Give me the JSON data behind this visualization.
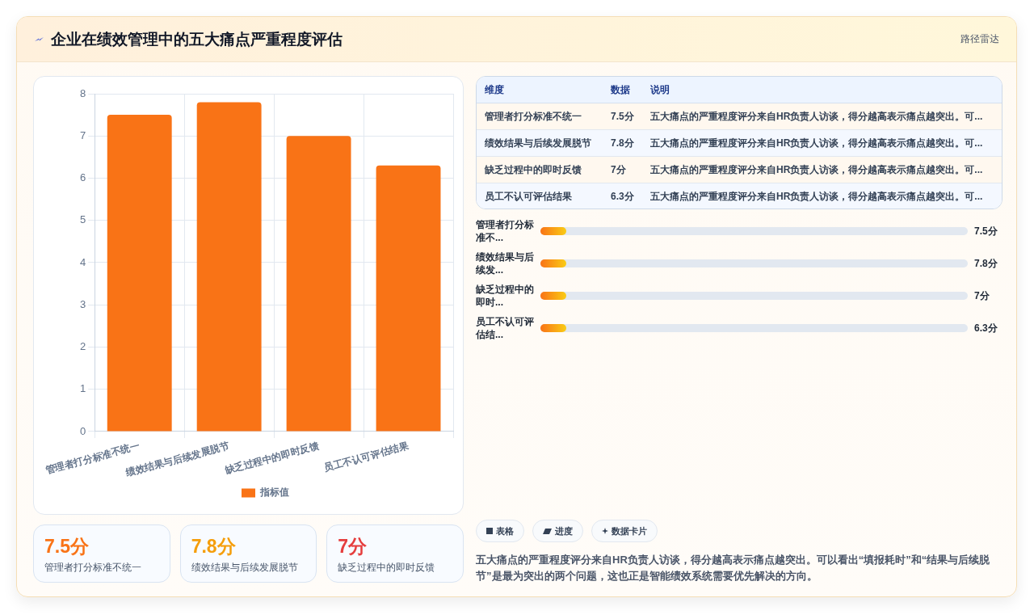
{
  "chart_data": [
    {
      "type": "bar",
      "title": "企业在绩效管理中的五大痛点严重程度评估",
      "categories": [
        "管理者打分标准不统一",
        "绩效结果与后续发展脱节",
        "缺乏过程中的即时反馈",
        "员工不认可评估结果"
      ],
      "series": [
        {
          "name": "指标值",
          "color": "#f97316",
          "values": [
            7.5,
            7.8,
            7,
            6.3
          ]
        }
      ],
      "ylim": [
        0,
        8
      ],
      "yticks": [
        0,
        1,
        2,
        3,
        4,
        5,
        6,
        7,
        8
      ],
      "grid": true,
      "legend": "bottom"
    },
    {
      "type": "other",
      "subtitle": "路径雷达",
      "categories": [
        "维度",
        "数据",
        "说明"
      ],
      "cell_labels": [
        [
          "管理者打分标准不统一",
          "7.5分",
          "五大痛点的严重程度评分来自HR负责人访谈，得分越高表示痛点越突出。可..."
        ],
        [
          "绩效结果与后续发展脱节",
          "7.8分",
          "五大痛点的严重程度评分来自HR负责人访谈，得分越高表示痛点越突出。可..."
        ],
        [
          "缺乏过程中的即时反馈",
          "7分",
          "五大痛点的严重程度评分来自HR负责人访谈，得分越高表示痛点越突出。可..."
        ],
        [
          "员工不认可评估结果",
          "6.3分",
          "五大痛点的严重程度评分来自HR负责人访谈，得分越高表示痛点越突出。可..."
        ]
      ]
    },
    {
      "type": "other",
      "categories": [
        "管理者打分标准不...",
        "绩效结果与后续发...",
        "缺乏过程中的即时...",
        "员工不认可评估结..."
      ],
      "value_labels": [
        "7.5分",
        "7.8分",
        "7分",
        "6.3分"
      ]
    },
    {
      "type": "other",
      "categories": [
        "管理者打分标准不统一",
        "绩效结果与后续发展脱节",
        "缺乏过程中的即时反馈"
      ],
      "value_labels": [
        "7.5分",
        "7.8分",
        "7分"
      ]
    },
    {
      "type": "other",
      "categories": [
        "表格",
        "进度",
        "数据卡片"
      ],
      "annotations": [
        "五大痛点的严重程度评分来自HR负责人访谈，得分越高表示痛点越突出。可以看出“填报耗时”和“结果与后续脱节”是最为突出的两个问题，这也正是智能绩效系统需要优先解决的方向。"
      ]
    }
  ]
}
